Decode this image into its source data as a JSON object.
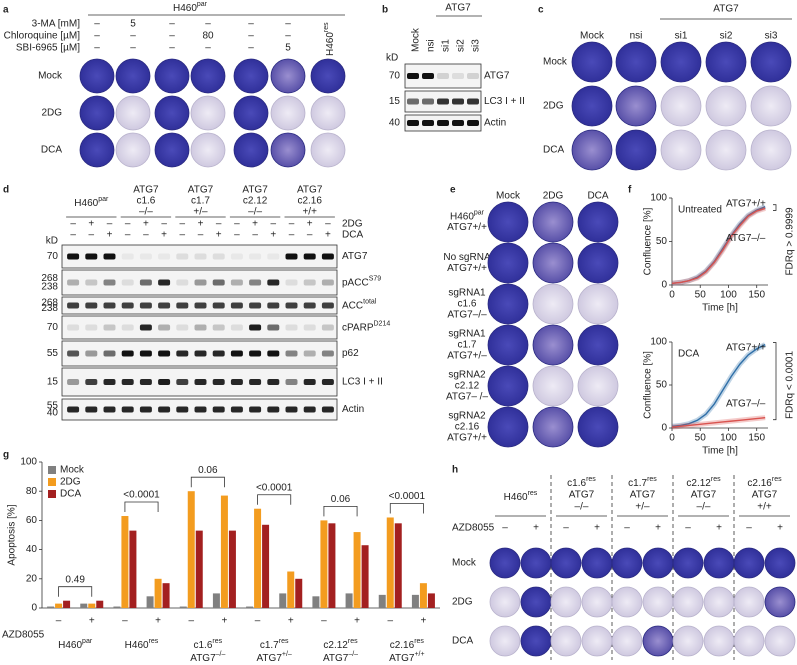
{
  "panel_labels": [
    "a",
    "b",
    "c",
    "d",
    "e",
    "f",
    "g",
    "h"
  ],
  "panel_a": {
    "header": {
      "text": "H460",
      "sup": "par"
    },
    "header_color": "#2a7ab0",
    "treatments": [
      {
        "name": "3-MA [mM]",
        "values": [
          "–",
          "5",
          "–",
          "–",
          "–",
          "–"
        ]
      },
      {
        "name": "Chloroquine [µM]",
        "values": [
          "–",
          "–",
          "–",
          "80",
          "–",
          "–"
        ]
      },
      {
        "name": "SBI-6965 [µM]",
        "values": [
          "–",
          "–",
          "–",
          "–",
          "–",
          "5"
        ]
      }
    ],
    "res_label": {
      "text": "H460",
      "sup": "res"
    },
    "res_color": "#c0392b",
    "rows": [
      "Mock",
      "2DG",
      "DCA"
    ]
  },
  "panel_b": {
    "columns": [
      "Mock",
      "nsi",
      "si1",
      "si2",
      "si3"
    ],
    "group": "ATG7",
    "kd_header": "kD",
    "blots": [
      {
        "name": "ATG7",
        "kd": [
          "70"
        ]
      },
      {
        "name": "LC3 I + II",
        "kd": [
          "15"
        ]
      },
      {
        "name": "Actin",
        "kd": [
          "40"
        ]
      }
    ]
  },
  "panel_c": {
    "columns": [
      "Mock",
      "nsi",
      "si1",
      "si2",
      "si3"
    ],
    "group": "ATG7",
    "rows": [
      "Mock",
      "2DG",
      "DCA"
    ]
  },
  "panel_d": {
    "groups": [
      [
        {
          "text": "H460",
          "sup": "par"
        }
      ],
      [
        "ATG7",
        "c1.6",
        "–/–"
      ],
      [
        "ATG7",
        "c1.7",
        "+/–"
      ],
      [
        "ATG7",
        "c2.12",
        "–/–"
      ],
      [
        "ATG7",
        "c2.16",
        "+/+"
      ]
    ],
    "treatments": [
      {
        "name": "2DG",
        "values": [
          "–",
          "+",
          "–",
          "–",
          "+",
          "–",
          "–",
          "+",
          "–",
          "–",
          "+",
          "–",
          "–",
          "+",
          "–"
        ]
      },
      {
        "name": "DCA",
        "values": [
          "–",
          "–",
          "+",
          "–",
          "–",
          "+",
          "–",
          "–",
          "+",
          "–",
          "–",
          "+",
          "–",
          "–",
          "+"
        ]
      }
    ],
    "kd_header": "kD",
    "blots": [
      {
        "name": "ATG7",
        "kd": [
          "70"
        ]
      },
      {
        "name": {
          "text": "pACC",
          "sup": "S79"
        },
        "kd": [
          "268",
          "238"
        ]
      },
      {
        "name": {
          "text": "ACC",
          "sup": "total"
        },
        "kd": [
          "268",
          "238"
        ]
      },
      {
        "name": {
          "text": "cPARP",
          "sup": "D214"
        },
        "kd": [
          "70"
        ]
      },
      {
        "name": "p62",
        "kd": [
          "55"
        ]
      },
      {
        "name": "LC3 I + II",
        "kd": [
          "15"
        ]
      },
      {
        "name": "Actin",
        "kd": [
          "55",
          "40"
        ]
      }
    ]
  },
  "panel_e": {
    "columns": [
      "Mock",
      "2DG",
      "DCA"
    ],
    "rows": [
      [
        {
          "text": "H460",
          "sup": "par"
        },
        "ATG7+/+"
      ],
      [
        "No sgRNA",
        "ATG7+/+"
      ],
      [
        "sgRNA1",
        "c1.6",
        "ATG7–/–"
      ],
      [
        "sgRNA1",
        "c1.7",
        "ATG7+/–"
      ],
      [
        "sgRNA2",
        "c2.12",
        "ATG7– /–"
      ],
      [
        "sgRNA2",
        "c2.16",
        "ATG7+/+"
      ]
    ]
  },
  "panel_h": {
    "groups": [
      {
        "lines": [
          {
            "text": "H460",
            "sup": "res"
          }
        ],
        "color": "#c0392b"
      },
      {
        "lines": [
          {
            "text": "c1.6",
            "sup": "res"
          },
          "ATG7",
          "–/–"
        ],
        "color": "#222222"
      },
      {
        "lines": [
          {
            "text": "c1.7",
            "sup": "res"
          },
          "ATG7",
          "+/–"
        ],
        "color": "#222222"
      },
      {
        "lines": [
          {
            "text": "c2.12",
            "sup": "res"
          },
          "ATG7",
          "–/–"
        ],
        "color": "#222222"
      },
      {
        "lines": [
          {
            "text": "c2.16",
            "sup": "res"
          },
          "ATG7",
          "+/+"
        ],
        "color": "#222222"
      }
    ],
    "treatment": "AZD8055",
    "signs": [
      "–",
      "+",
      "–",
      "+",
      "–",
      "+",
      "–",
      "+",
      "–",
      "+"
    ],
    "rows": [
      "Mock",
      "2DG",
      "DCA"
    ]
  },
  "chart_data": [
    {
      "type": "line",
      "title": "Untreated",
      "x": [
        0,
        15,
        30,
        45,
        60,
        75,
        90,
        105,
        120,
        135,
        150,
        165
      ],
      "series": [
        {
          "name": "ATG7+/+",
          "color": "#2f6fa8",
          "values": [
            2,
            3,
            5,
            9,
            16,
            27,
            42,
            57,
            70,
            80,
            86,
            90
          ]
        },
        {
          "name": "ATG7–/–",
          "color": "#d9534f",
          "values": [
            2,
            3,
            5,
            8,
            15,
            26,
            40,
            56,
            68,
            79,
            85,
            88
          ]
        }
      ],
      "xlim": [
        0,
        170
      ],
      "ylim": [
        0,
        100
      ],
      "xticks": [
        0,
        50,
        100,
        150
      ],
      "yticks": [
        0,
        50,
        100
      ],
      "xlabel": "Time [h]",
      "ylabel": "Confluence [%]",
      "annotation": "FDRq > 0.9999"
    },
    {
      "type": "line",
      "title": "DCA",
      "x": [
        0,
        15,
        30,
        45,
        60,
        75,
        90,
        105,
        120,
        135,
        150,
        165
      ],
      "series": [
        {
          "name": "ATG7+/+",
          "color": "#2f6fa8",
          "values": [
            2,
            3,
            5,
            9,
            16,
            28,
            44,
            60,
            74,
            85,
            92,
            97
          ]
        },
        {
          "name": "ATG7–/–",
          "color": "#d9534f",
          "values": [
            1,
            2,
            3,
            4,
            5,
            6,
            7,
            8,
            9,
            10,
            11,
            12
          ]
        }
      ],
      "xlim": [
        0,
        170
      ],
      "ylim": [
        0,
        100
      ],
      "xticks": [
        0,
        50,
        100,
        150
      ],
      "yticks": [
        0,
        50,
        100
      ],
      "xlabel": "Time [h]",
      "ylabel": "Confluence [%]",
      "annotation": "FDRq < 0.0001"
    },
    {
      "type": "bar",
      "ylabel": "Apoptosis [%]",
      "xlabel": "AZD8055",
      "categories": [
        "–",
        "+",
        "–",
        "+",
        "–",
        "+",
        "–",
        "+",
        "–",
        "+",
        "–",
        "+"
      ],
      "series": [
        {
          "name": "Mock",
          "color": "#808080",
          "values": [
            1,
            3,
            1,
            8,
            1,
            10,
            1,
            10,
            8,
            10,
            9,
            9
          ]
        },
        {
          "name": "2DG",
          "color": "#f39c1f",
          "values": [
            3,
            3,
            63,
            20,
            80,
            77,
            68,
            25,
            60,
            52,
            62,
            17
          ]
        },
        {
          "name": "DCA",
          "color": "#a32020",
          "values": [
            5,
            5,
            53,
            17,
            53,
            53,
            57,
            20,
            58,
            43,
            58,
            10
          ]
        }
      ],
      "ylim": [
        0,
        100
      ],
      "yticks": [
        0,
        20,
        40,
        60,
        80,
        100
      ],
      "legend": "upper left",
      "groups": [
        {
          "label": [
            {
              "text": "H460",
              "sup": "par"
            }
          ],
          "color": "#2a7ab0",
          "p": "0.49"
        },
        {
          "label": [
            {
              "text": "H460",
              "sup": "res"
            }
          ],
          "color": "#c0392b",
          "p": "<0.0001"
        },
        {
          "label": [
            {
              "text": "c1.6",
              "sup": "res"
            },
            {
              "text": "ATG7",
              "sup": "–/–"
            }
          ],
          "color": "#222222",
          "p": "0.06"
        },
        {
          "label": [
            {
              "text": "c1.7",
              "sup": "res"
            },
            {
              "text": "ATG7",
              "sup": "+/–"
            }
          ],
          "color": "#222222",
          "p": "<0.0001"
        },
        {
          "label": [
            {
              "text": "c2.12",
              "sup": "res"
            },
            {
              "text": "ATG7",
              "sup": "–/–"
            }
          ],
          "color": "#222222",
          "p": "0.06"
        },
        {
          "label": [
            {
              "text": "c2.16",
              "sup": "res"
            },
            {
              "text": "ATG7",
              "sup": "+/+"
            }
          ],
          "color": "#222222",
          "p": "<0.0001"
        }
      ]
    }
  ]
}
